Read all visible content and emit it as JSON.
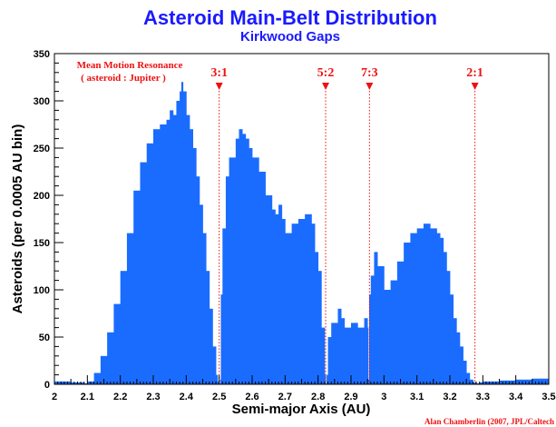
{
  "chart_data": {
    "type": "bar",
    "title": "Asteroid Main-Belt Distribution",
    "subtitle": "Kirkwood Gaps",
    "xlabel": "Semi-major Axis (AU)",
    "ylabel": "Asteroids (per 0.0005 AU bin)",
    "xlim": [
      2.0,
      3.5
    ],
    "ylim": [
      0,
      350
    ],
    "xticks": [
      "2",
      "2.1",
      "2.2",
      "2.3",
      "2.4",
      "2.5",
      "2.6",
      "2.7",
      "2.8",
      "2.9",
      "3",
      "3.1",
      "3.2",
      "3.3",
      "3.4",
      "3.5"
    ],
    "yticks": [
      "0",
      "50",
      "100",
      "150",
      "200",
      "250",
      "300",
      "350"
    ],
    "color": "#1a6cff",
    "grid": false,
    "legend": "none",
    "bin_width": 0.0005,
    "series": [
      {
        "x": [
          2.0,
          2.05,
          2.09,
          2.1,
          2.12,
          2.14,
          2.16,
          2.18,
          2.2,
          2.22,
          2.24,
          2.26,
          2.28,
          2.3,
          2.32,
          2.34,
          2.35,
          2.36,
          2.37,
          2.38,
          2.385,
          2.39,
          2.4,
          2.41,
          2.42,
          2.43,
          2.44,
          2.45,
          2.46,
          2.47,
          2.48,
          2.49,
          2.495,
          2.5,
          2.503,
          2.505,
          2.51,
          2.52,
          2.53,
          2.55,
          2.56,
          2.57,
          2.58,
          2.59,
          2.6,
          2.62,
          2.64,
          2.66,
          2.67,
          2.68,
          2.69,
          2.7,
          2.72,
          2.74,
          2.76,
          2.78,
          2.79,
          2.8,
          2.81,
          2.82,
          2.823,
          2.826,
          2.83,
          2.84,
          2.86,
          2.87,
          2.88,
          2.9,
          2.92,
          2.94,
          2.95,
          2.952,
          2.955,
          2.96,
          2.97,
          2.98,
          3.0,
          3.02,
          3.04,
          3.06,
          3.08,
          3.1,
          3.12,
          3.14,
          3.16,
          3.17,
          3.18,
          3.19,
          3.2,
          3.21,
          3.22,
          3.23,
          3.24,
          3.25,
          3.26,
          3.27,
          3.28,
          3.29,
          3.3,
          3.35,
          3.4,
          3.45,
          3.5
        ],
        "values": [
          3,
          2,
          1,
          3,
          12,
          30,
          55,
          85,
          120,
          160,
          205,
          235,
          255,
          270,
          275,
          280,
          290,
          285,
          300,
          310,
          320,
          310,
          285,
          270,
          250,
          220,
          190,
          160,
          120,
          80,
          40,
          10,
          3,
          0,
          5,
          95,
          165,
          220,
          240,
          260,
          270,
          265,
          260,
          250,
          240,
          225,
          200,
          185,
          180,
          190,
          175,
          160,
          170,
          175,
          180,
          170,
          140,
          120,
          60,
          10,
          0,
          10,
          50,
          65,
          80,
          70,
          60,
          65,
          60,
          70,
          60,
          5,
          95,
          115,
          140,
          125,
          100,
          110,
          130,
          150,
          160,
          165,
          170,
          165,
          160,
          155,
          140,
          120,
          95,
          70,
          55,
          40,
          25,
          12,
          5,
          2,
          1,
          2,
          3,
          4,
          5,
          6,
          5
        ]
      }
    ],
    "annotations": {
      "heading_line1": "Mean Motion Resonance",
      "heading_line2": "( asteroid : Jupiter )",
      "resonances": [
        {
          "label": "3:1",
          "x": 2.5
        },
        {
          "label": "5:2",
          "x": 2.823
        },
        {
          "label": "7:3",
          "x": 2.956
        },
        {
          "label": "2:1",
          "x": 3.276
        }
      ],
      "credit": "Alan Chamberlin (2007, JPL/Caltech"
    }
  }
}
